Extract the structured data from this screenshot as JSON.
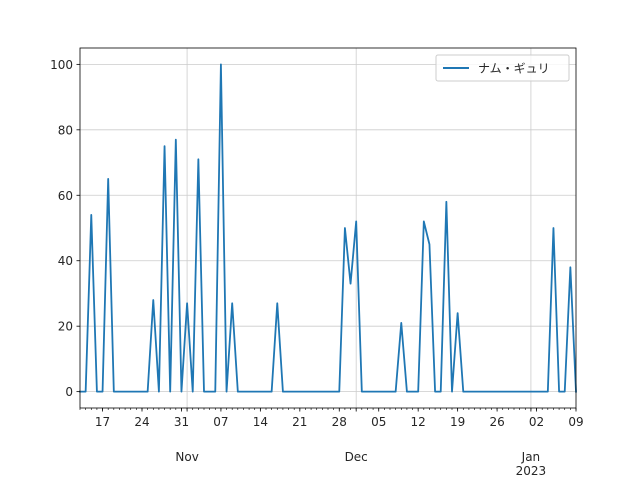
{
  "chart_data": {
    "type": "line",
    "title": "",
    "xlabel": "",
    "ylabel": "",
    "x_start": "2022-10-13",
    "x_end": "2023-01-09",
    "ylim": [
      -5,
      105
    ],
    "grid": true,
    "legend_position": "top-right",
    "colors": {
      "line": "#1f77b4",
      "grid": "#cccccc",
      "axis": "#000000"
    },
    "yticks": [
      0,
      20,
      40,
      60,
      80,
      100
    ],
    "ytick_labels": [
      "0",
      "20",
      "40",
      "60",
      "80",
      "100"
    ],
    "xticks": [
      {
        "date": "2022-10-17",
        "label": "17"
      },
      {
        "date": "2022-10-24",
        "label": "24"
      },
      {
        "date": "2022-10-31",
        "label": "31"
      },
      {
        "date": "2022-11-07",
        "label": "07"
      },
      {
        "date": "2022-11-14",
        "label": "14"
      },
      {
        "date": "2022-11-21",
        "label": "21"
      },
      {
        "date": "2022-11-28",
        "label": "28"
      },
      {
        "date": "2022-12-05",
        "label": "05"
      },
      {
        "date": "2022-12-12",
        "label": "12"
      },
      {
        "date": "2022-12-19",
        "label": "19"
      },
      {
        "date": "2022-12-26",
        "label": "26"
      },
      {
        "date": "2023-01-02",
        "label": "02"
      },
      {
        "date": "2023-01-09",
        "label": "09"
      }
    ],
    "month_labels": [
      {
        "date": "2022-11-01",
        "label": "Nov"
      },
      {
        "date": "2022-12-01",
        "label": "Dec"
      },
      {
        "date": "2023-01-01",
        "label": "Jan"
      }
    ],
    "year_label": {
      "date": "2023-01-01",
      "label": "2023"
    },
    "series": [
      {
        "name": "ナム・ギュリ",
        "points": [
          [
            "2022-10-13",
            0
          ],
          [
            "2022-10-14",
            0
          ],
          [
            "2022-10-15",
            54
          ],
          [
            "2022-10-16",
            0
          ],
          [
            "2022-10-17",
            0
          ],
          [
            "2022-10-18",
            65
          ],
          [
            "2022-10-19",
            0
          ],
          [
            "2022-10-20",
            0
          ],
          [
            "2022-10-21",
            0
          ],
          [
            "2022-10-22",
            0
          ],
          [
            "2022-10-23",
            0
          ],
          [
            "2022-10-24",
            0
          ],
          [
            "2022-10-25",
            0
          ],
          [
            "2022-10-26",
            28
          ],
          [
            "2022-10-27",
            0
          ],
          [
            "2022-10-28",
            75
          ],
          [
            "2022-10-29",
            0
          ],
          [
            "2022-10-30",
            77
          ],
          [
            "2022-10-31",
            0
          ],
          [
            "2022-11-01",
            27
          ],
          [
            "2022-11-02",
            0
          ],
          [
            "2022-11-03",
            71
          ],
          [
            "2022-11-04",
            0
          ],
          [
            "2022-11-05",
            0
          ],
          [
            "2022-11-06",
            0
          ],
          [
            "2022-11-07",
            100
          ],
          [
            "2022-11-08",
            0
          ],
          [
            "2022-11-09",
            27
          ],
          [
            "2022-11-10",
            0
          ],
          [
            "2022-11-11",
            0
          ],
          [
            "2022-11-12",
            0
          ],
          [
            "2022-11-13",
            0
          ],
          [
            "2022-11-14",
            0
          ],
          [
            "2022-11-15",
            0
          ],
          [
            "2022-11-16",
            0
          ],
          [
            "2022-11-17",
            27
          ],
          [
            "2022-11-18",
            0
          ],
          [
            "2022-11-19",
            0
          ],
          [
            "2022-11-20",
            0
          ],
          [
            "2022-11-21",
            0
          ],
          [
            "2022-11-22",
            0
          ],
          [
            "2022-11-23",
            0
          ],
          [
            "2022-11-24",
            0
          ],
          [
            "2022-11-25",
            0
          ],
          [
            "2022-11-26",
            0
          ],
          [
            "2022-11-27",
            0
          ],
          [
            "2022-11-28",
            0
          ],
          [
            "2022-11-29",
            50
          ],
          [
            "2022-11-30",
            33
          ],
          [
            "2022-12-01",
            52
          ],
          [
            "2022-12-02",
            0
          ],
          [
            "2022-12-03",
            0
          ],
          [
            "2022-12-04",
            0
          ],
          [
            "2022-12-05",
            0
          ],
          [
            "2022-12-06",
            0
          ],
          [
            "2022-12-07",
            0
          ],
          [
            "2022-12-08",
            0
          ],
          [
            "2022-12-09",
            21
          ],
          [
            "2022-12-10",
            0
          ],
          [
            "2022-12-11",
            0
          ],
          [
            "2022-12-12",
            0
          ],
          [
            "2022-12-13",
            52
          ],
          [
            "2022-12-14",
            45
          ],
          [
            "2022-12-15",
            0
          ],
          [
            "2022-12-16",
            0
          ],
          [
            "2022-12-17",
            58
          ],
          [
            "2022-12-18",
            0
          ],
          [
            "2022-12-19",
            24
          ],
          [
            "2022-12-20",
            0
          ],
          [
            "2022-12-21",
            0
          ],
          [
            "2022-12-22",
            0
          ],
          [
            "2022-12-23",
            0
          ],
          [
            "2022-12-24",
            0
          ],
          [
            "2022-12-25",
            0
          ],
          [
            "2022-12-26",
            0
          ],
          [
            "2022-12-27",
            0
          ],
          [
            "2022-12-28",
            0
          ],
          [
            "2022-12-29",
            0
          ],
          [
            "2022-12-30",
            0
          ],
          [
            "2022-12-31",
            0
          ],
          [
            "2023-01-01",
            0
          ],
          [
            "2023-01-02",
            0
          ],
          [
            "2023-01-03",
            0
          ],
          [
            "2023-01-04",
            0
          ],
          [
            "2023-01-05",
            50
          ],
          [
            "2023-01-06",
            0
          ],
          [
            "2023-01-07",
            0
          ],
          [
            "2023-01-08",
            38
          ],
          [
            "2023-01-09",
            0
          ]
        ]
      }
    ]
  }
}
